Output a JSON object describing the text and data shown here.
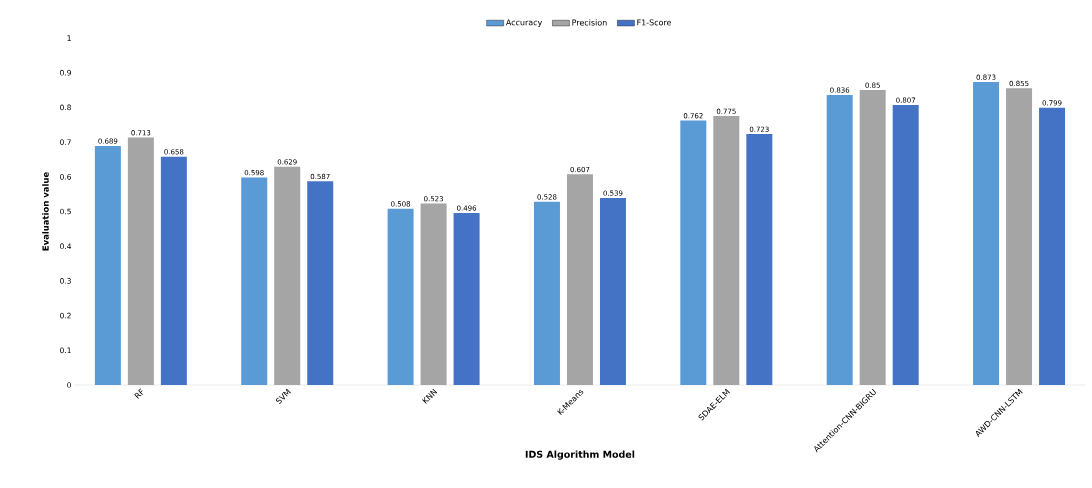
{
  "chart_data": {
    "type": "bar",
    "xlabel": "IDS Algorithm Model",
    "ylabel": "Evaluation value",
    "categories": [
      "RF",
      "SVM",
      "KNN",
      "K-Means",
      "SDAE-ELM",
      "Attention-CNN-BIGRU",
      "AWD-CNN-LSTM"
    ],
    "series": [
      {
        "name": "Accuracy",
        "color": "#5b9bd5",
        "values": [
          0.689,
          0.598,
          0.508,
          0.528,
          0.762,
          0.836,
          0.873
        ]
      },
      {
        "name": "Precision",
        "color": "#a5a5a5",
        "values": [
          0.713,
          0.629,
          0.523,
          0.607,
          0.775,
          0.85,
          0.855
        ]
      },
      {
        "name": "F1-Score",
        "color": "#4472c4",
        "values": [
          0.658,
          0.587,
          0.496,
          0.539,
          0.723,
          0.807,
          0.799
        ]
      }
    ],
    "ylim": [
      0,
      1
    ],
    "yticks": [
      0,
      0.1,
      0.2,
      0.3,
      0.4,
      0.5,
      0.6,
      0.7,
      0.8,
      0.9,
      1
    ],
    "data_labels": true,
    "grid": false,
    "legend": "top"
  }
}
